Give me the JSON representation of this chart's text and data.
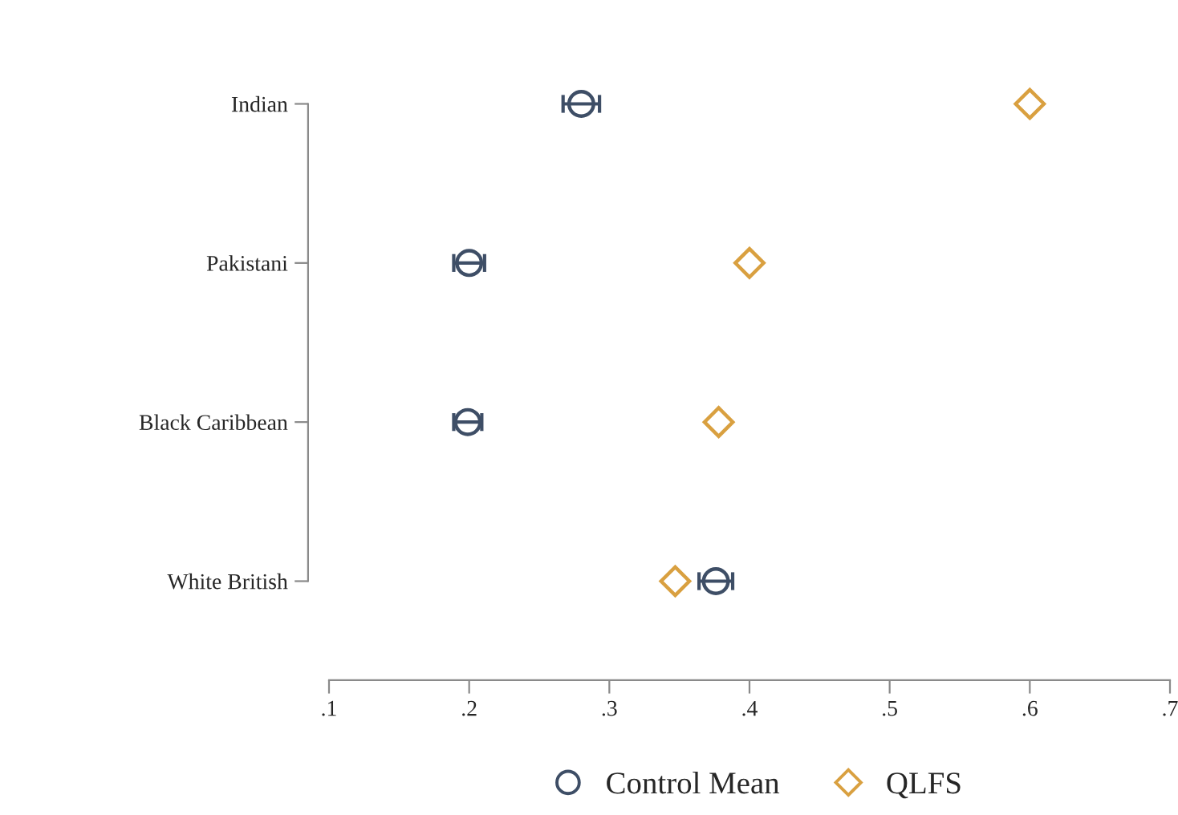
{
  "chart_data": {
    "type": "scatter",
    "orientation": "horizontal",
    "categories": [
      "Indian",
      "Pakistani",
      "Black Caribbean",
      "White British"
    ],
    "series": [
      {
        "name": "Control Mean",
        "color": "#3e4e66",
        "marker": "circle",
        "values": [
          0.28,
          0.2,
          0.199,
          0.376
        ],
        "errors": [
          0.013,
          0.011,
          0.01,
          0.012
        ]
      },
      {
        "name": "QLFS",
        "color": "#d9a040",
        "marker": "diamond",
        "values": [
          0.6,
          0.4,
          0.378,
          0.347
        ]
      }
    ],
    "xlim": [
      0.1,
      0.7
    ],
    "xticks": [
      {
        "value": 0.1,
        "label": ".1"
      },
      {
        "value": 0.2,
        "label": ".2"
      },
      {
        "value": 0.3,
        "label": ".3"
      },
      {
        "value": 0.4,
        "label": ".4"
      },
      {
        "value": 0.5,
        "label": ".5"
      },
      {
        "value": 0.6,
        "label": ".6"
      },
      {
        "value": 0.7,
        "label": ".7"
      }
    ],
    "grid": false,
    "legend": "bottom"
  }
}
